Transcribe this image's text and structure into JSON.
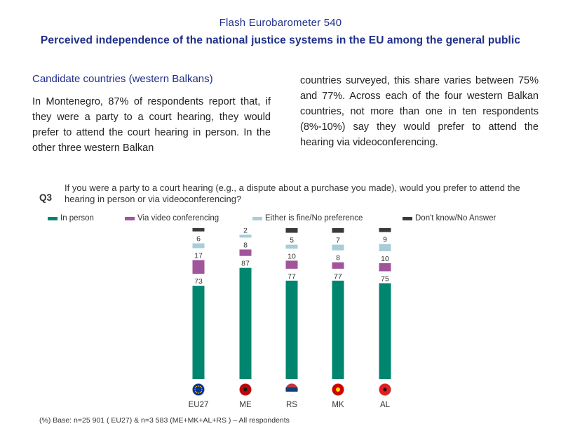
{
  "header": {
    "survey": "Flash Eurobarometer 540",
    "title": "Perceived independence of the national justice systems in the EU among the general public"
  },
  "section": {
    "heading": "Candidate countries (western Balkans)",
    "left_paragraph": "In Montenegro, 87% of respondents report that, if they were a party to a court hearing, they would prefer to attend the court hearing in person. In the other three western Balkan",
    "right_paragraph": "countries surveyed, this share varies between 75% and 77%. Across each of the four western Balkan countries, not more than one in ten respondents (8%-10%) say they would prefer to attend the hearing via videoconferencing."
  },
  "question": {
    "label": "Q3",
    "text": "If you were a party to a court hearing (e.g., a dispute about a purchase you made), would you prefer to attend the hearing in person or via videoconferencing?"
  },
  "footnote": "(%) Base: n=25 901 ( EU27) & n=3 583 (ME+MK+AL+RS ) – All respondents",
  "flags": {
    "EU27": {
      "icon": "eu-flag-icon",
      "color": "#003399"
    },
    "ME": {
      "icon": "montenegro-flag-icon",
      "color": "#c40308"
    },
    "RS": {
      "icon": "serbia-flag-icon",
      "color": "#c6363c"
    },
    "MK": {
      "icon": "north-macedonia-flag-icon",
      "color": "#d20000"
    },
    "AL": {
      "icon": "albania-flag-icon",
      "color": "#e41e20"
    }
  },
  "chart_data": {
    "type": "bar",
    "stacked": true,
    "categories": [
      "EU27",
      "ME",
      "RS",
      "MK",
      "AL"
    ],
    "series": [
      {
        "name": "In person",
        "color": "#00866f",
        "values": [
          73,
          87,
          77,
          77,
          75
        ]
      },
      {
        "name": "Via video conferencing",
        "color": "#a0559b",
        "values": [
          17,
          8,
          10,
          8,
          10
        ]
      },
      {
        "name": "Either is fine/No preference",
        "color": "#a9ccd9",
        "values": [
          6,
          2,
          5,
          7,
          9
        ]
      },
      {
        "name": "Don't know/No Answer",
        "color": "#3a3a3a",
        "values": [
          5,
          3,
          8,
          8,
          6
        ]
      }
    ],
    "legend_position": "top",
    "grid": false,
    "xlabel": "",
    "ylabel": ""
  }
}
